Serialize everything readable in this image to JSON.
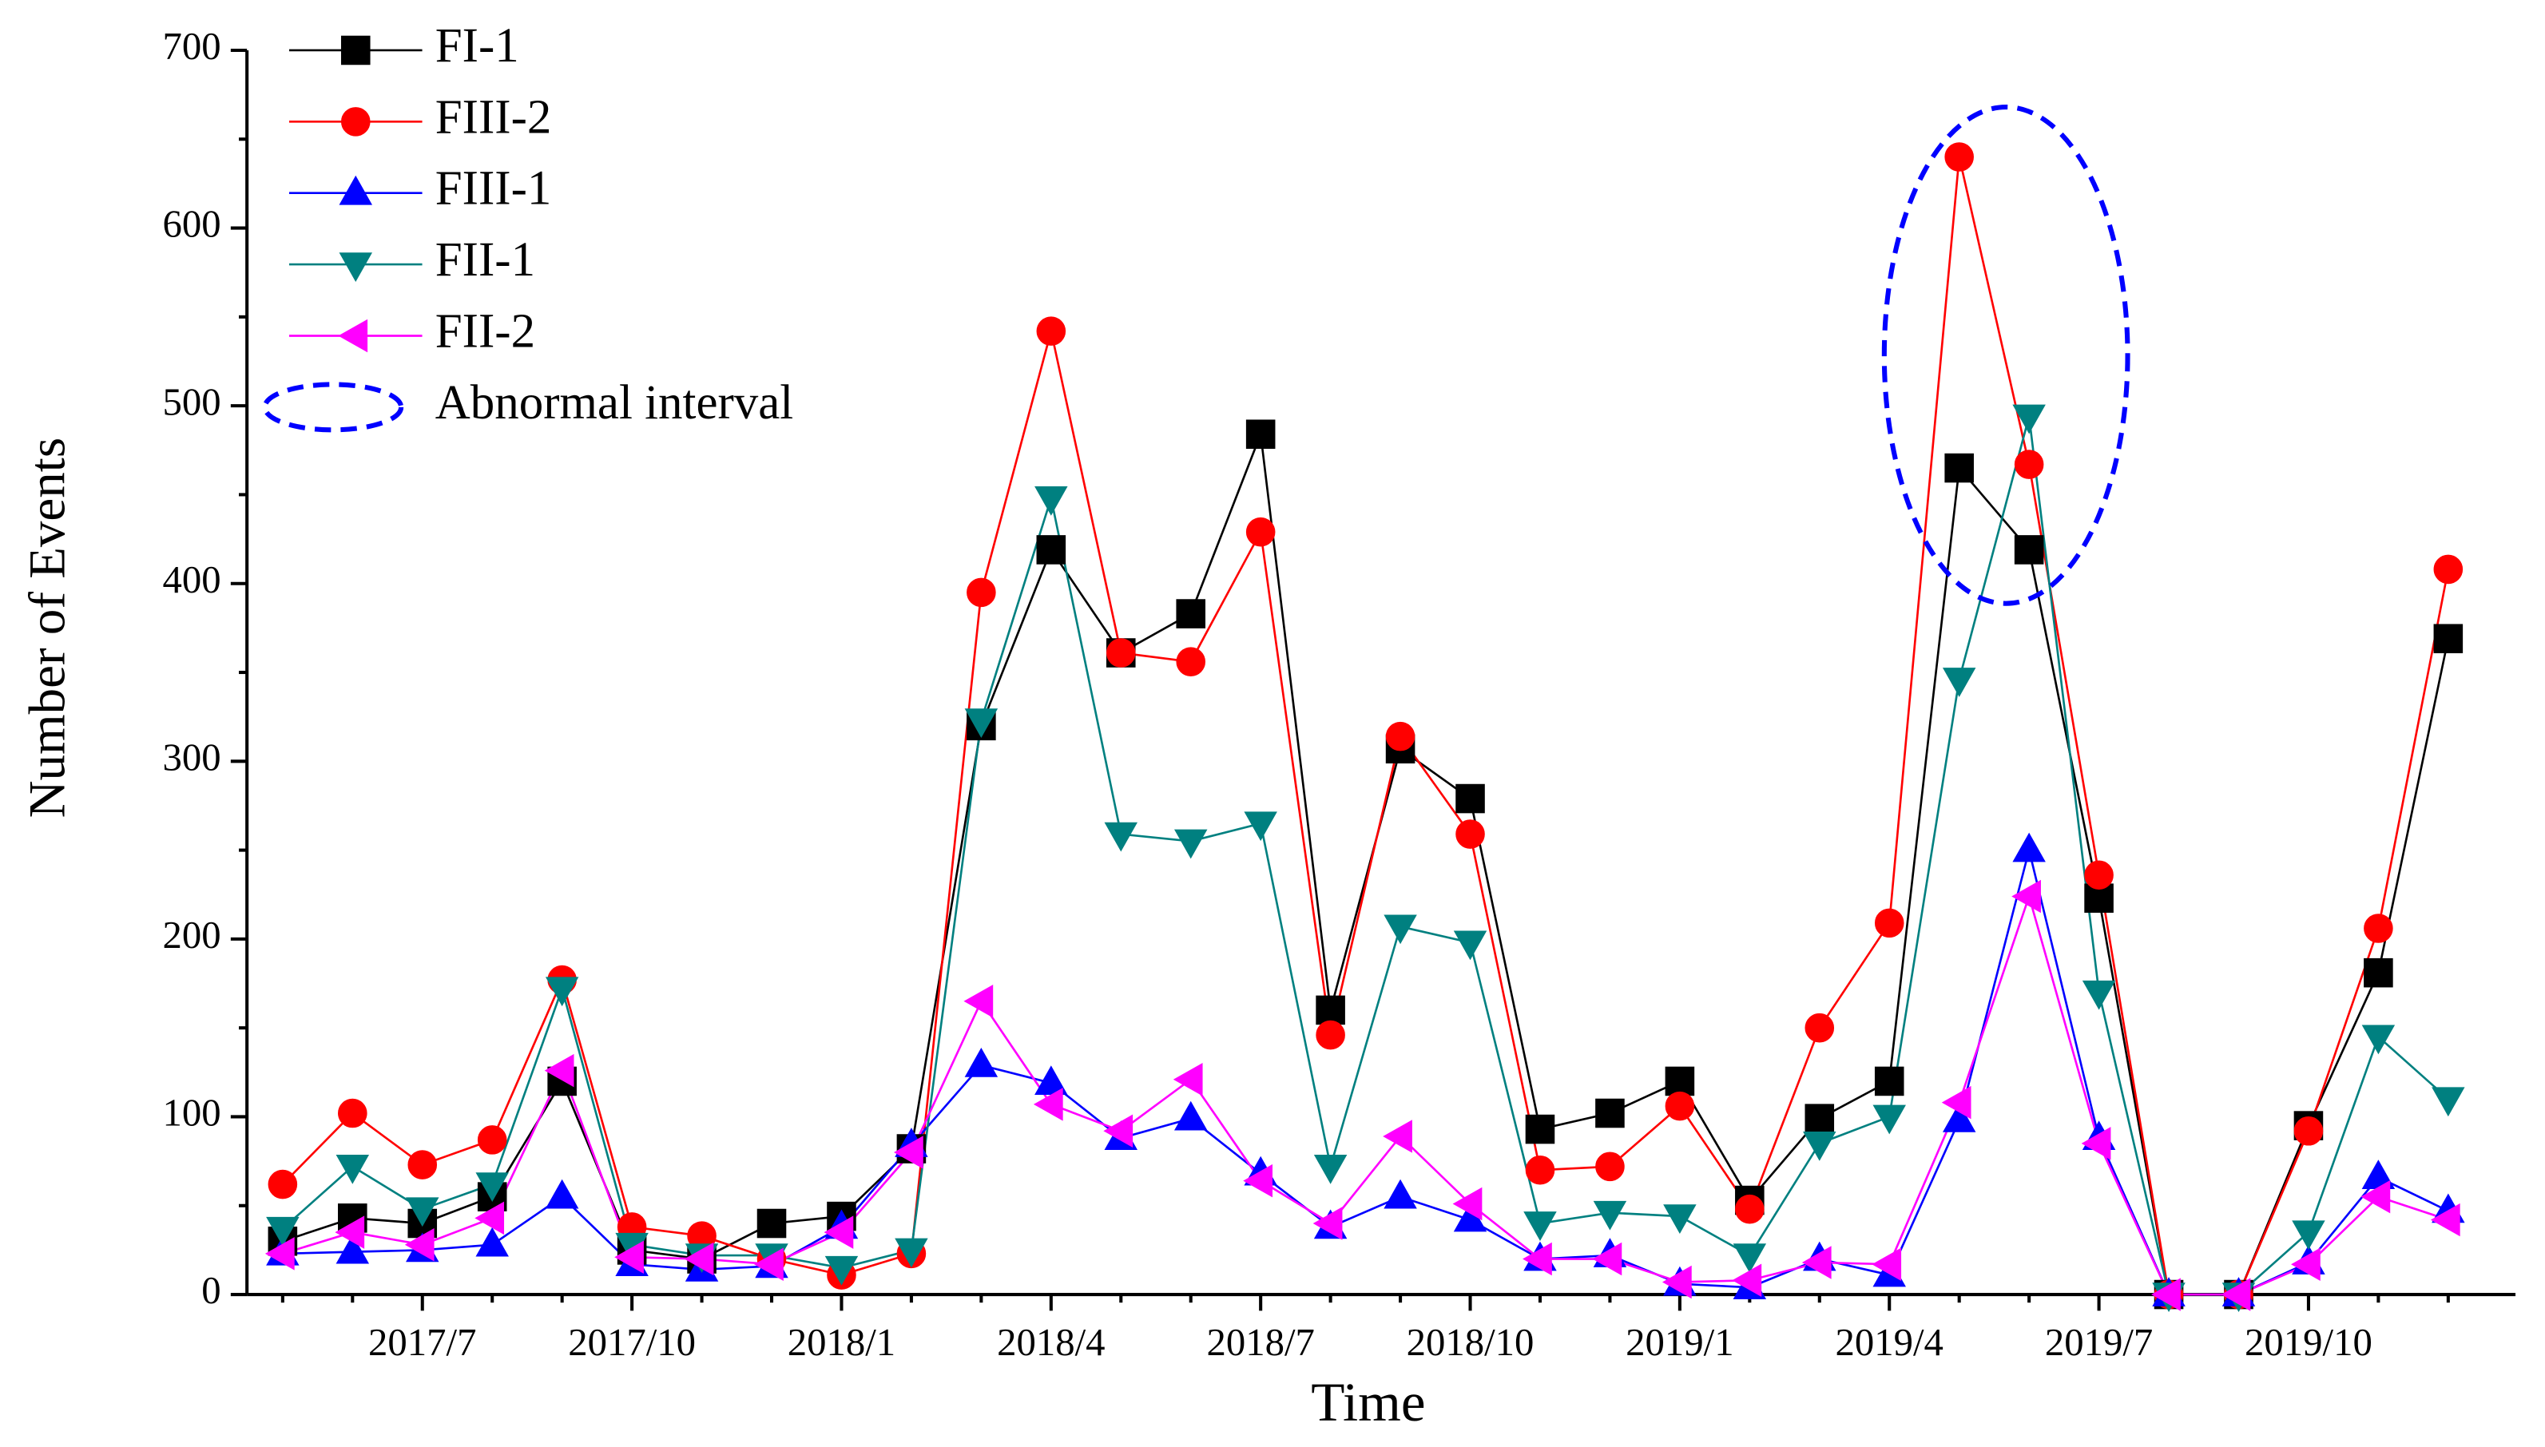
{
  "chart_data": {
    "type": "line",
    "x_label": "Time",
    "y_label": "Number of Events",
    "categories": [
      null,
      null,
      "2017/7",
      null,
      null,
      "2017/10",
      null,
      null,
      "2018/1",
      null,
      null,
      "2018/4",
      null,
      null,
      "2018/7",
      null,
      null,
      "2018/10",
      null,
      null,
      "2019/1",
      null,
      null,
      "2019/4",
      null,
      null,
      "2019/7",
      null,
      null,
      "2019/10",
      null,
      null
    ],
    "ylim": [
      0,
      700
    ],
    "yticks": [
      0,
      100,
      200,
      300,
      400,
      500,
      600,
      700
    ],
    "legend": "upper left",
    "series": [
      {
        "name": "FI-1",
        "color": "#000000",
        "marker": "square",
        "values": [
          30,
          43,
          40,
          55,
          120,
          25,
          20,
          40,
          44,
          82,
          320,
          419,
          361,
          383,
          484,
          160,
          307,
          279,
          93,
          102,
          120,
          53,
          99,
          120,
          465,
          419,
          223,
          0,
          0,
          95,
          181,
          369
        ]
      },
      {
        "name": "FIII-2",
        "color": "#ff0000",
        "marker": "circle",
        "values": [
          62,
          102,
          73,
          87,
          177,
          38,
          33,
          20,
          11,
          23,
          395,
          542,
          361,
          356,
          429,
          146,
          314,
          259,
          70,
          72,
          106,
          48,
          150,
          209,
          640,
          467,
          236,
          0,
          0,
          92,
          206,
          408
        ]
      },
      {
        "name": "FIII-1",
        "color": "#0000ff",
        "marker": "triangle-up",
        "values": [
          23,
          24,
          25,
          28,
          55,
          17,
          14,
          16,
          38,
          84,
          129,
          119,
          88,
          99,
          68,
          38,
          55,
          42,
          20,
          22,
          6,
          4,
          20,
          11,
          98,
          250,
          88,
          0,
          0,
          18,
          66,
          47
        ]
      },
      {
        "name": "FII-1",
        "color": "#008080",
        "marker": "triangle-down",
        "values": [
          37,
          72,
          48,
          62,
          172,
          28,
          22,
          22,
          15,
          25,
          323,
          448,
          259,
          255,
          265,
          72,
          207,
          198,
          40,
          46,
          44,
          22,
          85,
          100,
          346,
          494,
          170,
          0,
          0,
          35,
          145,
          110
        ]
      },
      {
        "name": "FII-2",
        "color": "#ff00ff",
        "marker": "triangle-left",
        "values": [
          23,
          35,
          28,
          43,
          126,
          21,
          20,
          17,
          35,
          80,
          165,
          107,
          92,
          121,
          64,
          40,
          89,
          51,
          20,
          20,
          7,
          8,
          18,
          17,
          108,
          224,
          85,
          0,
          0,
          17,
          55,
          42
        ]
      }
    ],
    "annotations": [
      {
        "text": "Abnormal interval",
        "color": "#0000ff"
      }
    ]
  }
}
